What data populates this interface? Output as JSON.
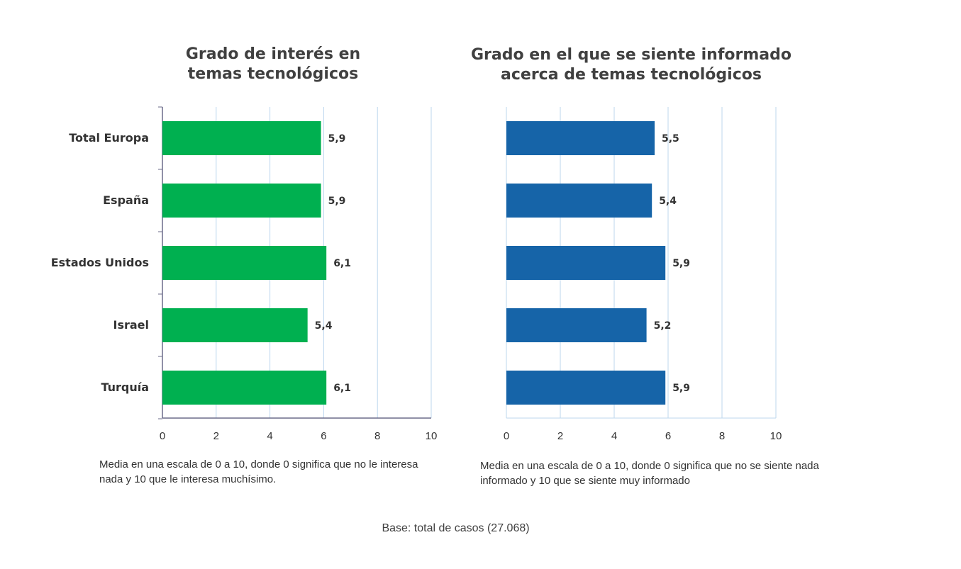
{
  "chart_data": [
    {
      "type": "bar",
      "orientation": "horizontal",
      "title": [
        "Grado de interés en",
        "temas tecnológicos"
      ],
      "categories": [
        "Total Europa",
        "España",
        "Estados Unidos",
        "Israel",
        "Turquía"
      ],
      "values": [
        5.9,
        5.9,
        6.1,
        5.4,
        6.1
      ],
      "value_labels": [
        "5,9",
        "5,9",
        "6,1",
        "5,4",
        "6,1"
      ],
      "xlim": [
        0,
        10
      ],
      "xticks": [
        "0",
        "2",
        "4",
        "6",
        "8",
        "10"
      ],
      "bar_color": "#00b050",
      "grid": "vertical",
      "note": [
        "Media en una escala de 0 a 10, donde 0 significa que no le interesa",
        "nada y 10 que le interesa muchísimo."
      ]
    },
    {
      "type": "bar",
      "orientation": "horizontal",
      "title": [
        "Grado en el que se siente informado",
        "acerca de temas tecnológicos"
      ],
      "categories": [
        "Total Europa",
        "España",
        "Estados Unidos",
        "Israel",
        "Turquía"
      ],
      "values": [
        5.5,
        5.4,
        5.9,
        5.2,
        5.9
      ],
      "value_labels": [
        "5,5",
        "5,4",
        "5,9",
        "5,2",
        "5,9"
      ],
      "xlim": [
        0,
        10
      ],
      "xticks": [
        "0",
        "2",
        "4",
        "6",
        "8",
        "10"
      ],
      "bar_color": "#1664a8",
      "grid": "vertical",
      "note": [
        "Media  en una escala de 0 a 10, donde 0 significa que no se siente nada",
        "informado y 10 que se siente muy informado"
      ]
    }
  ],
  "footer": {
    "base": "Base: total de casos (27.068)"
  },
  "colors": {
    "grid": "#bdd7ee",
    "axis": "#6b6b8a"
  }
}
